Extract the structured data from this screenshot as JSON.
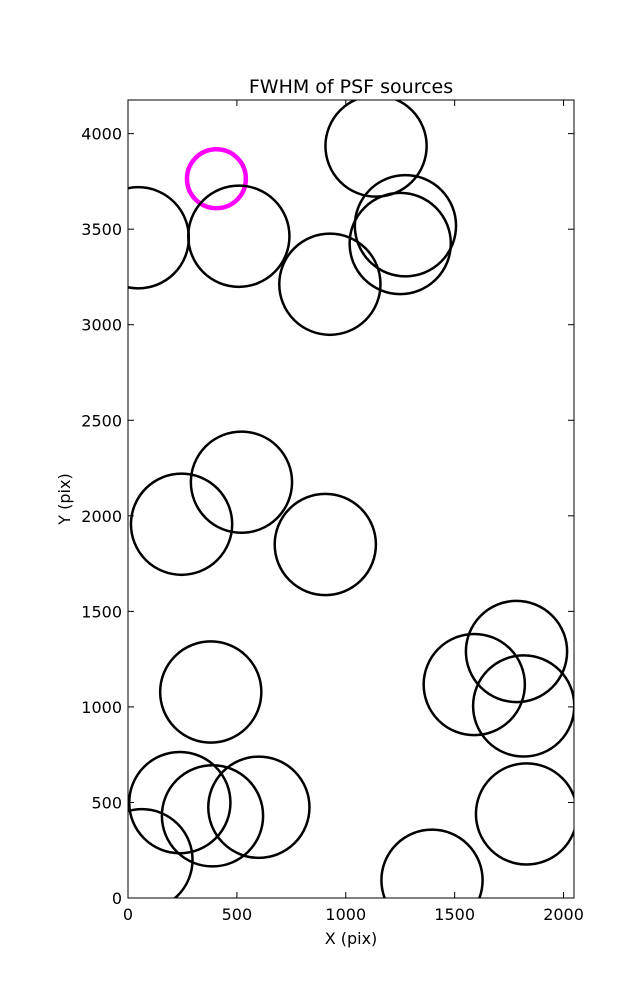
{
  "chart_data": {
    "type": "scatter",
    "title": "FWHM of PSF sources",
    "xlabel": "X (pix)",
    "ylabel": "Y (pix)",
    "xlim": [
      0,
      2048
    ],
    "ylim": [
      0,
      4176
    ],
    "xticks": [
      0,
      500,
      1000,
      1500,
      2000
    ],
    "yticks": [
      0,
      500,
      1000,
      1500,
      2000,
      2500,
      3000,
      3500,
      4000
    ],
    "grid": false,
    "marker": "circle",
    "sources": [
      {
        "x": 1139,
        "y": 3935,
        "r": 1.1,
        "highlight": false
      },
      {
        "x": 406,
        "y": 3764,
        "r": 0.64,
        "highlight": true
      },
      {
        "x": 1274,
        "y": 3518,
        "r": 1.1,
        "highlight": false
      },
      {
        "x": 1250,
        "y": 3425,
        "r": 1.1,
        "highlight": false
      },
      {
        "x": 47,
        "y": 3455,
        "r": 1.1,
        "highlight": false
      },
      {
        "x": 509,
        "y": 3463,
        "r": 1.1,
        "highlight": false
      },
      {
        "x": 927,
        "y": 3212,
        "r": 1.1,
        "highlight": false
      },
      {
        "x": 521,
        "y": 2176,
        "r": 1.1,
        "highlight": false
      },
      {
        "x": 246,
        "y": 1956,
        "r": 1.1,
        "highlight": false
      },
      {
        "x": 906,
        "y": 1850,
        "r": 1.1,
        "highlight": false
      },
      {
        "x": 1784,
        "y": 1290,
        "r": 1.1,
        "highlight": false
      },
      {
        "x": 1590,
        "y": 1117,
        "r": 1.1,
        "highlight": false
      },
      {
        "x": 1817,
        "y": 1005,
        "r": 1.1,
        "highlight": false
      },
      {
        "x": 380,
        "y": 1078,
        "r": 1.1,
        "highlight": false
      },
      {
        "x": 238,
        "y": 499,
        "r": 1.1,
        "highlight": false
      },
      {
        "x": 601,
        "y": 475,
        "r": 1.1,
        "highlight": false
      },
      {
        "x": 388,
        "y": 430,
        "r": 1.1,
        "highlight": false
      },
      {
        "x": 64,
        "y": 200,
        "r": 1.1,
        "highlight": false
      },
      {
        "x": 1830,
        "y": 440,
        "r": 1.1,
        "highlight": false
      },
      {
        "x": 1396,
        "y": 93,
        "r": 1.1,
        "highlight": false
      }
    ],
    "colors": {
      "default": "#000000",
      "highlight": "#ff00ff",
      "background": "#ffffff"
    }
  }
}
